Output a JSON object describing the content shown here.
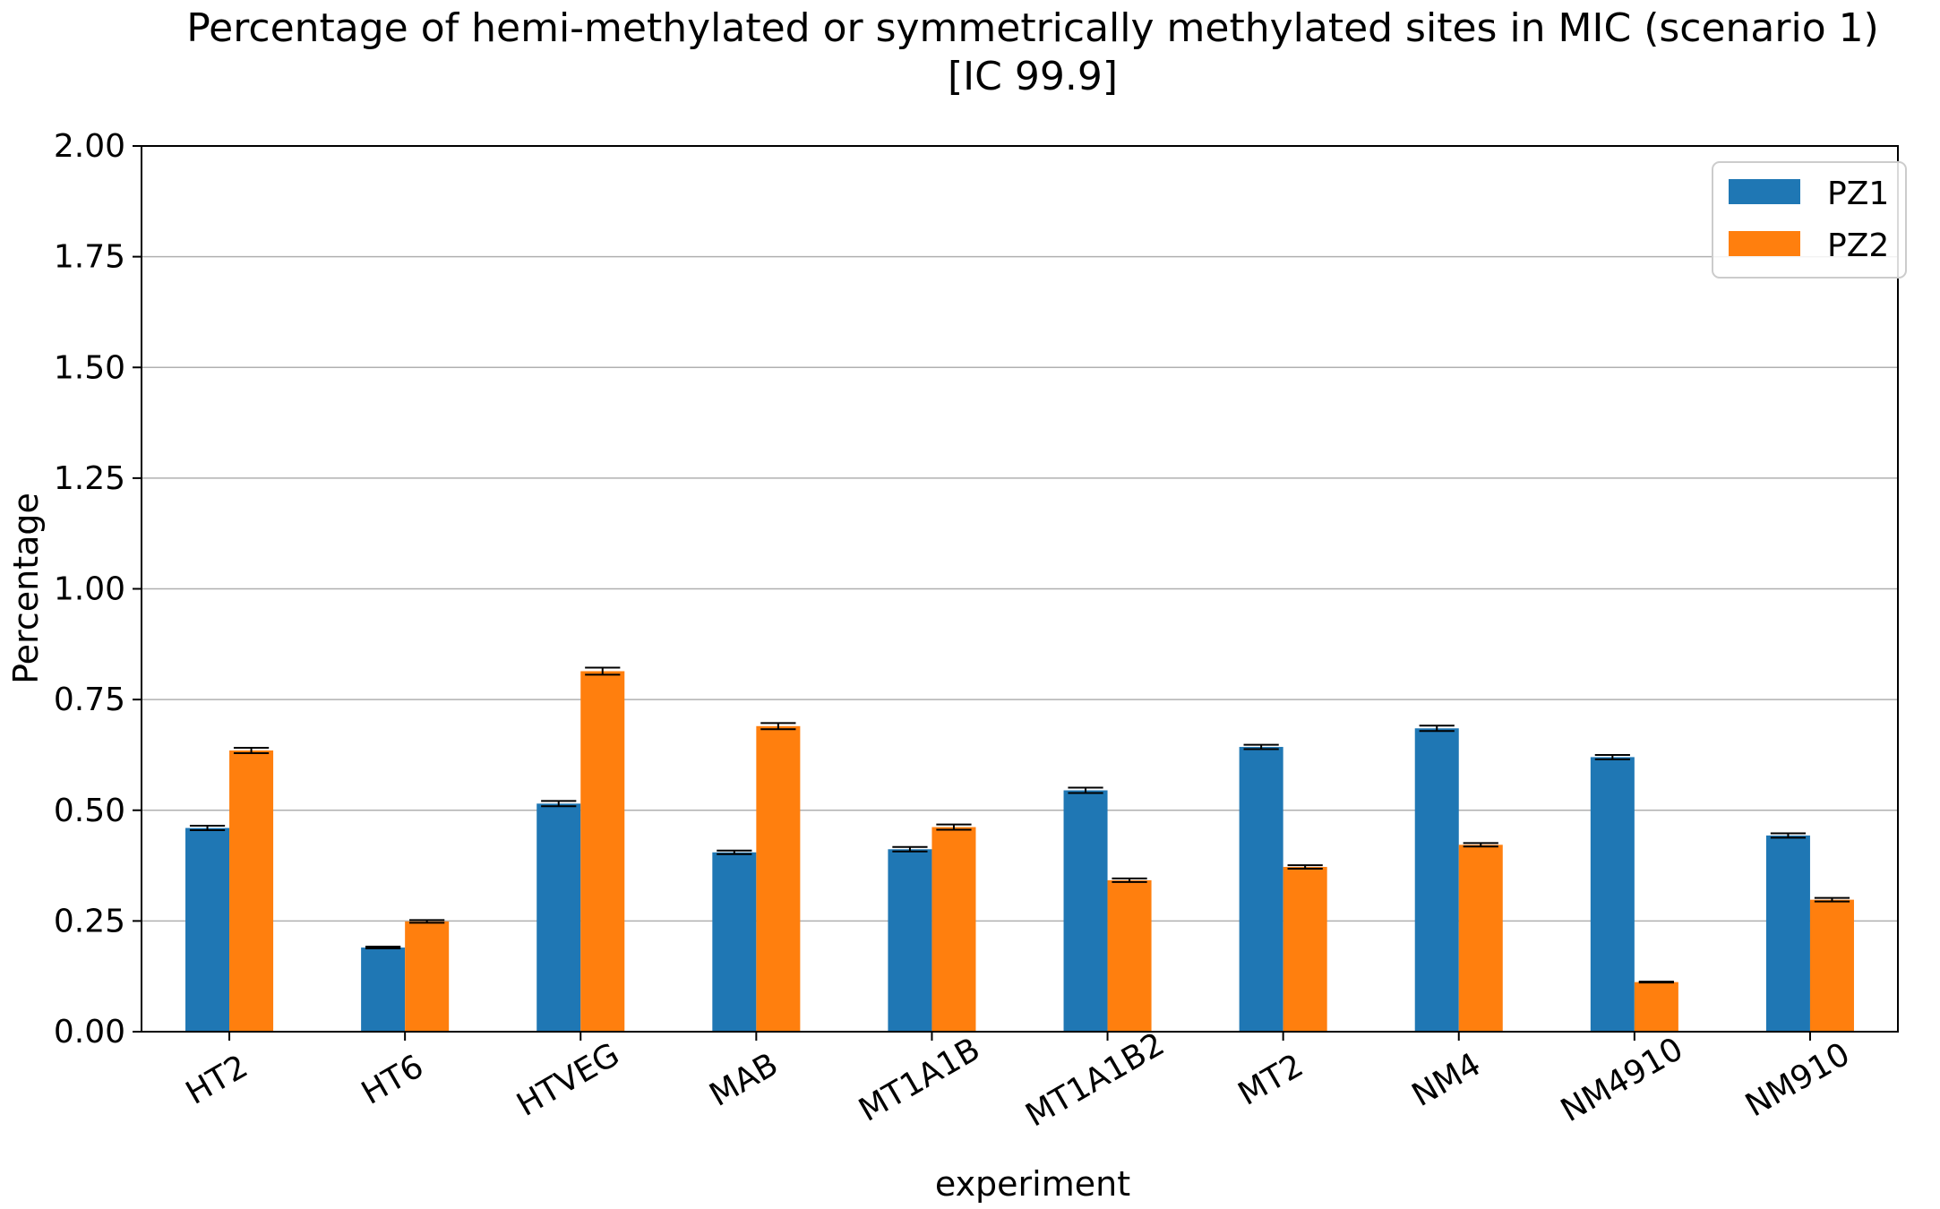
{
  "chart_data": {
    "type": "bar",
    "title": "Percentage of hemi-methylated or symmetrically methylated sites in MIC (scenario 1)",
    "subtitle": "[IC 99.9]",
    "xlabel": "experiment",
    "ylabel": "Percentage",
    "ylim": [
      0,
      2.0
    ],
    "yticks": [
      "0.00",
      "0.25",
      "0.50",
      "0.75",
      "1.00",
      "1.25",
      "1.50",
      "1.75",
      "2.00"
    ],
    "grid": "horizontal",
    "legend_position": "top-right",
    "categories": [
      "HT2",
      "HT6",
      "HTVEG",
      "MAB",
      "MT1A1B",
      "MT1A1B2",
      "MT2",
      "NM4",
      "NM4910",
      "NM910"
    ],
    "series": [
      {
        "name": "PZ1",
        "color": "#1f77b4",
        "values": [
          0.46,
          0.19,
          0.515,
          0.405,
          0.412,
          0.545,
          0.643,
          0.685,
          0.62,
          0.443
        ],
        "errors": [
          0.005,
          0.002,
          0.006,
          0.004,
          0.005,
          0.006,
          0.005,
          0.006,
          0.005,
          0.005
        ]
      },
      {
        "name": "PZ2",
        "color": "#ff7f0e",
        "values": [
          0.635,
          0.249,
          0.814,
          0.69,
          0.462,
          0.342,
          0.372,
          0.422,
          0.112,
          0.298
        ],
        "errors": [
          0.006,
          0.003,
          0.008,
          0.007,
          0.006,
          0.004,
          0.004,
          0.004,
          0.001,
          0.004
        ]
      }
    ]
  }
}
